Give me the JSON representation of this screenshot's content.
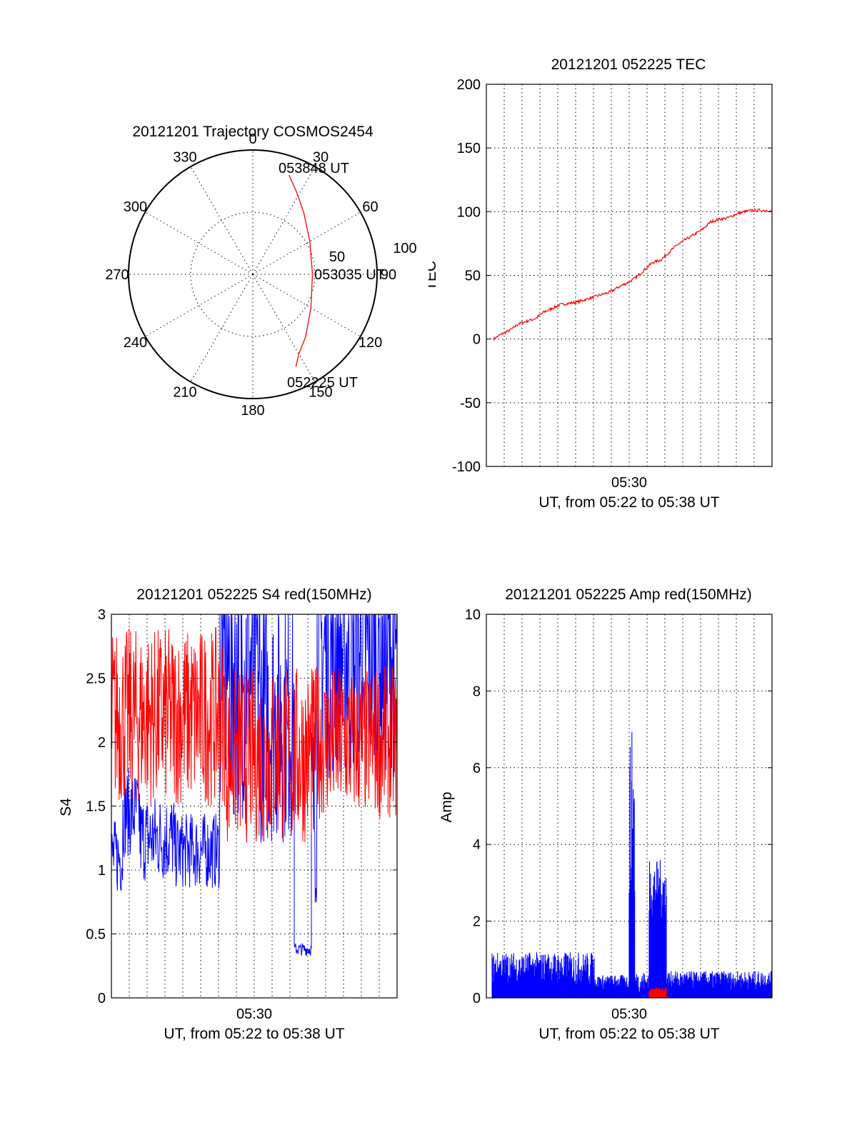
{
  "chart_data": [
    {
      "type": "polar",
      "title": "20121201 Trajectory COSMOS2454",
      "azimuth_labels": [
        "0",
        "30",
        "60",
        "90",
        "120",
        "150",
        "180",
        "210",
        "240",
        "270",
        "300",
        "330"
      ],
      "radial_labels": [
        "50",
        "100"
      ],
      "annotations": [
        "053848 UT",
        "053035 UT",
        "052225 UT"
      ],
      "trajectory": {
        "color": "#ff0000",
        "points": [
          {
            "az": 20,
            "zd": 85
          },
          {
            "az": 28,
            "zd": 75
          },
          {
            "az": 40,
            "zd": 64
          },
          {
            "az": 60,
            "zd": 53
          },
          {
            "az": 90,
            "zd": 48
          },
          {
            "az": 120,
            "zd": 54
          },
          {
            "az": 140,
            "zd": 66
          },
          {
            "az": 150,
            "zd": 74
          },
          {
            "az": 155,
            "zd": 82
          }
        ]
      }
    },
    {
      "type": "line",
      "title": "20121201 052225 TEC",
      "ylabel": "TEC",
      "xlabel": "UT, from 05:22 to 05:38 UT",
      "x_tick_label": "05:30",
      "ylim": [
        -100,
        200
      ],
      "y_ticks": [
        "-100",
        "-50",
        "0",
        "50",
        "100",
        "150",
        "200"
      ],
      "series": [
        {
          "color": "#ff0000",
          "values": [
            {
              "t": 0.0,
              "v": 0
            },
            {
              "t": 0.03,
              "v": 4
            },
            {
              "t": 0.06,
              "v": 7
            },
            {
              "t": 0.09,
              "v": 12
            },
            {
              "t": 0.12,
              "v": 14
            },
            {
              "t": 0.15,
              "v": 16
            },
            {
              "t": 0.18,
              "v": 21
            },
            {
              "t": 0.21,
              "v": 24
            },
            {
              "t": 0.24,
              "v": 27
            },
            {
              "t": 0.27,
              "v": 28
            },
            {
              "t": 0.3,
              "v": 29
            },
            {
              "t": 0.33,
              "v": 31
            },
            {
              "t": 0.36,
              "v": 33
            },
            {
              "t": 0.39,
              "v": 35
            },
            {
              "t": 0.42,
              "v": 37
            },
            {
              "t": 0.45,
              "v": 41
            },
            {
              "t": 0.48,
              "v": 44
            },
            {
              "t": 0.51,
              "v": 48
            },
            {
              "t": 0.54,
              "v": 54
            },
            {
              "t": 0.57,
              "v": 60
            },
            {
              "t": 0.6,
              "v": 62
            },
            {
              "t": 0.63,
              "v": 68
            },
            {
              "t": 0.66,
              "v": 74
            },
            {
              "t": 0.69,
              "v": 78
            },
            {
              "t": 0.72,
              "v": 82
            },
            {
              "t": 0.75,
              "v": 86
            },
            {
              "t": 0.78,
              "v": 92
            },
            {
              "t": 0.81,
              "v": 94
            },
            {
              "t": 0.84,
              "v": 95
            },
            {
              "t": 0.87,
              "v": 98
            },
            {
              "t": 0.9,
              "v": 100
            },
            {
              "t": 0.93,
              "v": 101
            },
            {
              "t": 0.96,
              "v": 101
            },
            {
              "t": 1.0,
              "v": 101
            }
          ]
        }
      ]
    },
    {
      "type": "line",
      "title": "20121201 052225 S4 red(150MHz)",
      "ylabel": "S4",
      "xlabel": "UT, from 05:22 to 05:38 UT",
      "x_tick_label": "05:30",
      "ylim": [
        0,
        3
      ],
      "y_ticks": [
        "0",
        "0.5",
        "1",
        "1.5",
        "2",
        "2.5",
        "3"
      ],
      "series": [
        {
          "color": "#0000ff",
          "segments": [
            {
              "t0": 0.0,
              "t1": 0.04,
              "mean": 1.1,
              "spread": 0.3
            },
            {
              "t0": 0.04,
              "t1": 0.1,
              "mean": 1.45,
              "spread": 0.35
            },
            {
              "t0": 0.1,
              "t1": 0.22,
              "mean": 1.25,
              "spread": 0.35
            },
            {
              "t0": 0.22,
              "t1": 0.38,
              "mean": 1.15,
              "spread": 0.3
            },
            {
              "t0": 0.38,
              "t1": 0.52,
              "mean": 2.6,
              "spread": 1.2
            },
            {
              "t0": 0.52,
              "t1": 0.64,
              "mean": 2.2,
              "spread": 1.0
            },
            {
              "t0": 0.64,
              "t1": 0.7,
              "mean": 0.38,
              "spread": 0.05
            },
            {
              "t0": 0.7,
              "t1": 0.72,
              "mean": 1.5,
              "spread": 0.8
            },
            {
              "t0": 0.72,
              "t1": 1.0,
              "mean": 2.7,
              "spread": 1.0
            }
          ]
        },
        {
          "color": "#ff0000",
          "segments": [
            {
              "t0": 0.0,
              "t1": 0.4,
              "mean": 2.2,
              "spread": 0.7
            },
            {
              "t0": 0.4,
              "t1": 0.7,
              "mean": 1.9,
              "spread": 0.7
            },
            {
              "t0": 0.7,
              "t1": 1.0,
              "mean": 2.0,
              "spread": 0.6
            }
          ]
        }
      ]
    },
    {
      "type": "line",
      "title": "20121201 052225 Amp red(150MHz)",
      "ylabel": "Amp",
      "xlabel": "UT, from 05:22 to 05:38 UT",
      "x_tick_label": "05:30",
      "ylim": [
        0,
        10
      ],
      "y_ticks": [
        "0",
        "2",
        "4",
        "6",
        "8",
        "10"
      ],
      "series": [
        {
          "color": "#0000ff",
          "segments": [
            {
              "t0": 0.02,
              "t1": 0.38,
              "mean": 0.75,
              "spread": 0.45
            },
            {
              "t0": 0.38,
              "t1": 0.5,
              "mean": 0.4,
              "spread": 0.2
            },
            {
              "t0": 0.5,
              "t1": 0.52,
              "mean": 4.5,
              "spread": 2.5
            },
            {
              "t0": 0.52,
              "t1": 0.57,
              "mean": 0.4,
              "spread": 0.3
            },
            {
              "t0": 0.57,
              "t1": 0.63,
              "mean": 2.8,
              "spread": 0.8
            },
            {
              "t0": 0.63,
              "t1": 1.0,
              "mean": 0.45,
              "spread": 0.25
            }
          ]
        },
        {
          "color": "#ff0000",
          "segments": [
            {
              "t0": 0.57,
              "t1": 0.63,
              "mean": 0.2,
              "spread": 0.1
            }
          ]
        }
      ]
    }
  ]
}
